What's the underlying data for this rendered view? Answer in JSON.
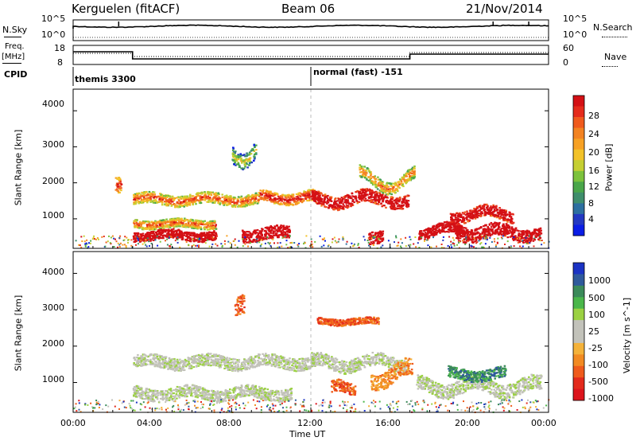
{
  "header": {
    "radar": "Kerguelen (fitACF)",
    "beam": "Beam 06",
    "date": "21/Nov/2014"
  },
  "noise_panel": {
    "left_label": "N.Sky",
    "right_label": "N.Search",
    "left_ticks": [
      "10^5",
      "10^0"
    ],
    "right_ticks": [
      "10^5",
      "10^0"
    ]
  },
  "freq_panel": {
    "left_label_1": "Freq.",
    "left_label_2": "[MHz]",
    "right_label": "Nave",
    "left_ticks": [
      "18",
      "8"
    ],
    "right_ticks": [
      "60",
      "0"
    ]
  },
  "cpid": {
    "label": "CPID",
    "entries": [
      {
        "text": "themis 3300",
        "start_hour": 0
      },
      {
        "text": "normal (fast) -151",
        "start_hour": 12
      }
    ]
  },
  "colors": {
    "axis": "#000000",
    "marker": "#bbbbbb",
    "ground_scatter": "#c2c2ba"
  },
  "chart_data": [
    {
      "type": "heatmap",
      "name": "power",
      "ylabel": "Slant Range [km]",
      "ylim": [
        180,
        4600
      ],
      "yticks": [
        1000,
        2000,
        3000,
        4000
      ],
      "xlim": [
        0,
        24
      ],
      "colorbar": {
        "label": "Power [dB]",
        "ticks": [
          "4",
          "8",
          "12",
          "16",
          "20",
          "24",
          "28"
        ],
        "colors": [
          "#0a1de6",
          "#2338c2",
          "#2d6fa0",
          "#3f8e6c",
          "#4aa64a",
          "#7cc23c",
          "#c5cf32",
          "#f2c229",
          "#f7a124",
          "#f38322",
          "#f05a1d",
          "#e52b1c",
          "#d41015"
        ]
      },
      "bands": [
        {
          "t0": 3.0,
          "t1": 9.4,
          "r": 1560,
          "w": 150,
          "amp": 70,
          "lvl": 11
        },
        {
          "t0": 9.4,
          "t1": 12.2,
          "r": 1620,
          "w": 150,
          "amp": 80,
          "lvl": 13
        },
        {
          "t0": 12.0,
          "t1": 16.9,
          "r": 1560,
          "w": 180,
          "amp": 120,
          "lvl": 16
        },
        {
          "t0": 3.0,
          "t1": 7.2,
          "r": 880,
          "w": 120,
          "amp": 40,
          "lvl": 11
        },
        {
          "t0": 3.0,
          "t1": 7.2,
          "r": 560,
          "w": 130,
          "amp": 60,
          "lvl": 22
        },
        {
          "t0": 8.5,
          "t1": 10.9,
          "r": 600,
          "w": 170,
          "amp": 80,
          "lvl": 21
        },
        {
          "t0": 17.4,
          "t1": 19.9,
          "r": 680,
          "w": 140,
          "amp": 120,
          "lvl": 24
        },
        {
          "t0": 19.3,
          "t1": 23.6,
          "r": 640,
          "w": 180,
          "amp": 120,
          "lvl": 25
        },
        {
          "t0": 19.0,
          "t1": 22.2,
          "r": 1150,
          "w": 160,
          "amp": 120,
          "lvl": 16
        },
        {
          "t0": 14.4,
          "t1": 17.2,
          "r": 2100,
          "w": 170,
          "amp": 250,
          "lvl": 10
        },
        {
          "t0": 2.1,
          "t1": 2.4,
          "r": 1950,
          "w": 230,
          "amp": 10,
          "lvl": 12
        },
        {
          "t0": 14.9,
          "t1": 15.6,
          "r": 560,
          "w": 170,
          "amp": 80,
          "lvl": 19
        },
        {
          "t0": 8.0,
          "t1": 9.2,
          "r": 3000,
          "w": 220,
          "amp": 400,
          "lvl": 7
        }
      ],
      "xticks": []
    },
    {
      "type": "heatmap",
      "name": "velocity",
      "ylabel": "Slant Range [km]",
      "xlabel": "Time UT",
      "ylim": [
        180,
        4600
      ],
      "yticks": [
        1000,
        2000,
        3000,
        4000
      ],
      "xlim": [
        0,
        24
      ],
      "xticks": [
        "00:00",
        "04:00",
        "08:00",
        "12:00",
        "16:00",
        "20:00",
        "00:00"
      ],
      "colorbar": {
        "label": "Velocity [m s^-1]",
        "ticks": [
          "1000",
          "500",
          "100",
          "25",
          "-25",
          "-100",
          "-500",
          "-1000"
        ],
        "colors": [
          "#1b33c4",
          "#2f5a9c",
          "#3b8a5a",
          "#4ab64a",
          "#9bd142",
          "#c2c2ba",
          "#c2c2ba",
          "#f4b23a",
          "#f28a22",
          "#ef5b1c",
          "#e32a1c",
          "#dc141c"
        ]
      },
      "bands": [
        {
          "t0": 3.0,
          "t1": 12.2,
          "r": 1580,
          "w": 170,
          "amp": 80,
          "lvl": 5
        },
        {
          "t0": 12.0,
          "t1": 16.8,
          "r": 1560,
          "w": 180,
          "amp": 120,
          "lvl": 5
        },
        {
          "t0": 3.0,
          "t1": 11.0,
          "r": 720,
          "w": 160,
          "amp": 80,
          "lvl": 5
        },
        {
          "t0": 17.3,
          "t1": 23.6,
          "r": 900,
          "w": 200,
          "amp": 150,
          "lvl": 5
        },
        {
          "t0": 15.0,
          "t1": 17.1,
          "r": 1220,
          "w": 230,
          "amp": 250,
          "lvl": 8
        },
        {
          "t0": 13.0,
          "t1": 14.2,
          "r": 800,
          "w": 160,
          "amp": 150,
          "lvl": 9
        },
        {
          "t0": 18.9,
          "t1": 21.8,
          "r": 1250,
          "w": 150,
          "amp": 80,
          "lvl": 2
        },
        {
          "t0": 8.1,
          "t1": 8.6,
          "r": 3200,
          "w": 260,
          "amp": 100,
          "lvl": 9
        },
        {
          "t0": 12.3,
          "t1": 15.4,
          "r": 2700,
          "w": 90,
          "amp": 40,
          "lvl": 9
        }
      ]
    }
  ]
}
